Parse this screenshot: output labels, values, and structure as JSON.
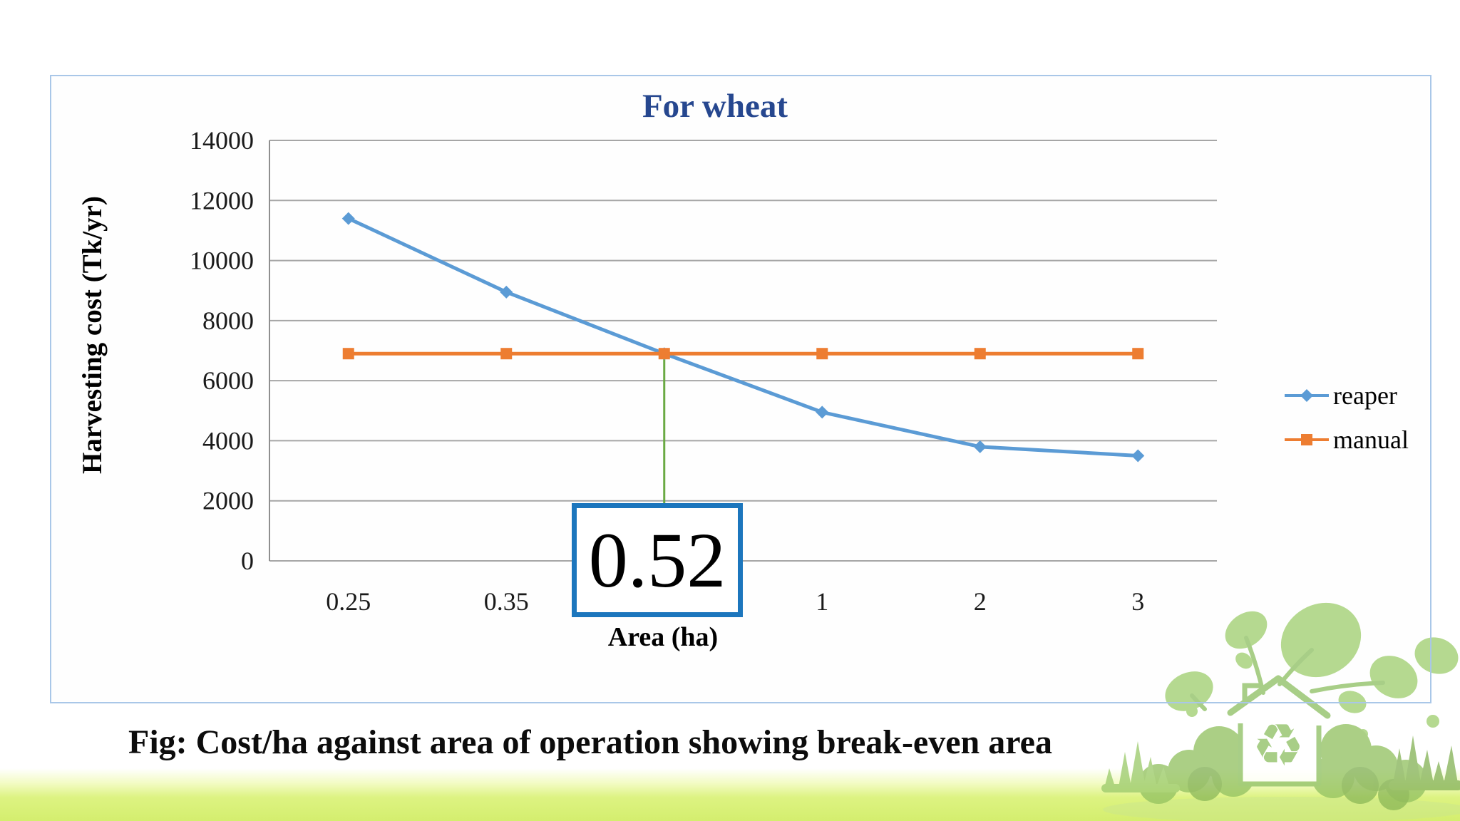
{
  "slide": {
    "caption": "Fig: Cost/ha against area of operation showing break-even area"
  },
  "chart_data": {
    "type": "line",
    "title": "For wheat",
    "xlabel": "Area (ha)",
    "ylabel": "Harvesting cost (Tk/yr)",
    "categories": [
      "0.25",
      "0.35",
      "0.5",
      "1",
      "2",
      "3"
    ],
    "series": [
      {
        "name": "reaper",
        "color": "#5b9bd5",
        "marker": "diamond",
        "values": [
          11400,
          8950,
          6900,
          4950,
          3800,
          3500
        ]
      },
      {
        "name": "manual",
        "color": "#ed7d31",
        "marker": "square",
        "values": [
          6900,
          6900,
          6900,
          6900,
          6900,
          6900
        ]
      }
    ],
    "ylim": [
      0,
      14000
    ],
    "y_ticks": [
      0,
      2000,
      4000,
      6000,
      8000,
      10000,
      12000,
      14000
    ],
    "grid": true,
    "legend_position": "right",
    "annotation": {
      "label": "0.52",
      "at_category_index": 2
    }
  },
  "colors": {
    "reaper_line": "#5b9bd5",
    "manual_line": "#ed7d31",
    "breakeven_line": "#6aaa43",
    "breakeven_box_border": "#1c76bd",
    "chart_title": "#26478f",
    "panel_border": "#a9c7e8",
    "gridline": "#a6a6a6",
    "axis_line": "#8f8f8f",
    "bottom_bar": "#d4ee6e",
    "eco_green": "#a5d06c"
  }
}
